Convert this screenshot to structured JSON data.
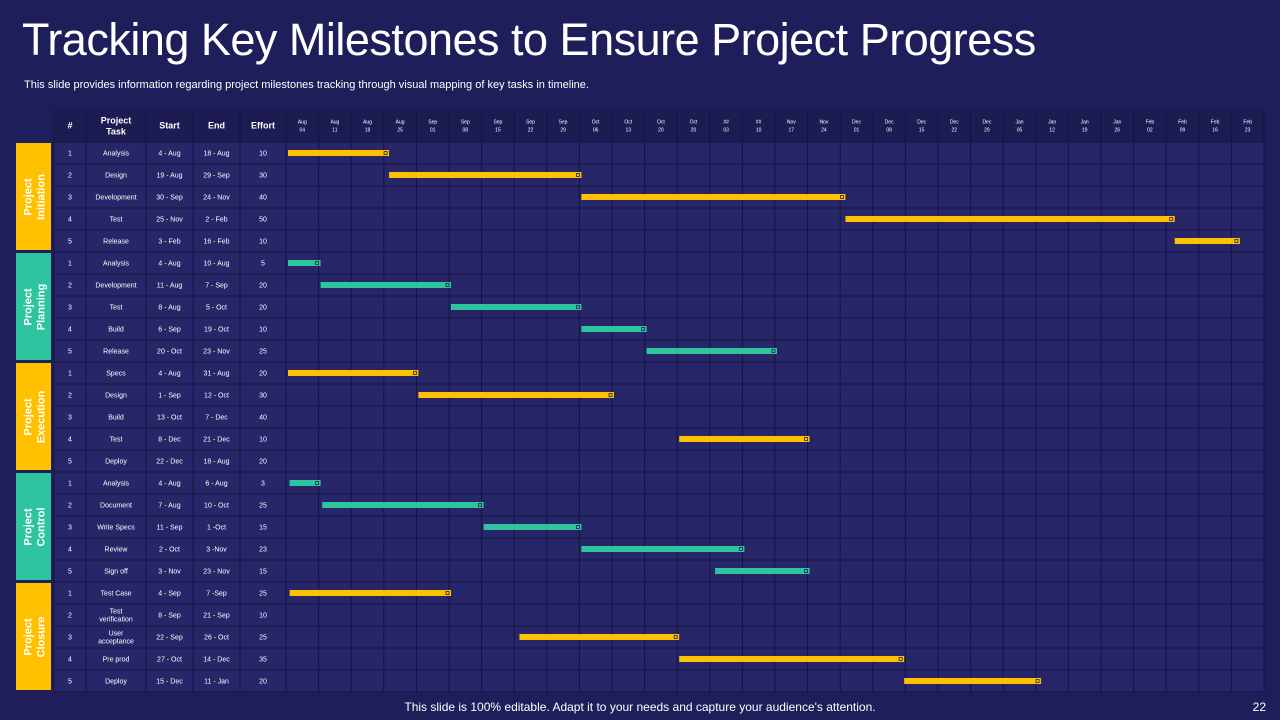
{
  "header": {
    "title": "Tracking Key Milestones to Ensure Project Progress",
    "subtitle": "This slide provides information regarding project milestones tracking through visual mapping of key tasks in timeline."
  },
  "footer": {
    "note": "This slide is 100% editable. Adapt it to your needs and capture your audience's attention.",
    "page_number": "22"
  },
  "colors": {
    "background": "#1e1e5a",
    "panel": "#262668",
    "header_row": "#1c1c52",
    "yellow": "#ffc000",
    "green": "#2ec4a0"
  },
  "chart_data": {
    "type": "table",
    "columns": [
      "#",
      "Project Task",
      "Start",
      "End",
      "Effort"
    ],
    "timeline": [
      [
        "Aug",
        "04"
      ],
      [
        "Aug",
        "11"
      ],
      [
        "Aug",
        "18"
      ],
      [
        "Aug",
        "25"
      ],
      [
        "Sep",
        "01"
      ],
      [
        "Sep",
        "08"
      ],
      [
        "Sep",
        "15"
      ],
      [
        "Sep",
        "22"
      ],
      [
        "Sep",
        "29"
      ],
      [
        "Oct",
        "06"
      ],
      [
        "Oct",
        "13"
      ],
      [
        "Oct",
        "20"
      ],
      [
        "Oct",
        "20"
      ],
      [
        "##",
        "03"
      ],
      [
        "##",
        "10"
      ],
      [
        "Nov",
        "17"
      ],
      [
        "Nov",
        "24"
      ],
      [
        "Dec",
        "01"
      ],
      [
        "Dec",
        "08"
      ],
      [
        "Dec",
        "15"
      ],
      [
        "Dec",
        "22"
      ],
      [
        "Dec",
        "29"
      ],
      [
        "Jan",
        "05"
      ],
      [
        "Jan",
        "12"
      ],
      [
        "Jan",
        "19"
      ],
      [
        "Jan",
        "26"
      ],
      [
        "Feb",
        "02"
      ],
      [
        "Feb",
        "09"
      ],
      [
        "Feb",
        "16"
      ],
      [
        "Feb",
        "23"
      ]
    ],
    "groups": [
      {
        "name": "Project Initiation",
        "color": "yellow",
        "tasks": [
          {
            "num": "1",
            "task": "Analysis",
            "start": "4 - Aug",
            "end": "18 - Aug",
            "effort": "10",
            "bar": [
              0,
              3.1
            ]
          },
          {
            "num": "2",
            "task": "Design",
            "start": "19 - Aug",
            "end": "29 - Sep",
            "effort": "30",
            "bar": [
              3.1,
              9.0
            ]
          },
          {
            "num": "3",
            "task": "Development",
            "start": "30 - Sep",
            "end": "24 - Nov",
            "effort": "40",
            "bar": [
              9.0,
              17.1
            ]
          },
          {
            "num": "4",
            "task": "Test",
            "start": "25 - Nov",
            "end": "2 - Feb",
            "effort": "50",
            "bar": [
              17.1,
              27.2
            ]
          },
          {
            "num": "5",
            "task": "Release",
            "start": "3 - Feb",
            "end": "16 - Feb",
            "effort": "10",
            "bar": [
              27.2,
              29.2
            ]
          }
        ]
      },
      {
        "name": "Project Planning",
        "color": "green",
        "tasks": [
          {
            "num": "1",
            "task": "Analysis",
            "start": "4 - Aug",
            "end": "10 - Aug",
            "effort": "5",
            "bar": [
              0,
              1.0
            ]
          },
          {
            "num": "2",
            "task": "Development",
            "start": "11 - Aug",
            "end": "7 - Sep",
            "effort": "20",
            "bar": [
              1.0,
              5.0
            ]
          },
          {
            "num": "3",
            "task": "Test",
            "start": "8 - Aug",
            "end": "5 - Oct",
            "effort": "20",
            "bar": [
              5.0,
              9.0
            ]
          },
          {
            "num": "4",
            "task": "Build",
            "start": "6 - Sep",
            "end": "19 - Oct",
            "effort": "10",
            "bar": [
              9.0,
              11.0
            ]
          },
          {
            "num": "5",
            "task": "Release",
            "start": "20 - Oct",
            "end": "23 - Nov",
            "effort": "25",
            "bar": [
              11.0,
              15.0
            ]
          }
        ]
      },
      {
        "name": "Project Execution",
        "color": "yellow",
        "tasks": [
          {
            "num": "1",
            "task": "Specs",
            "start": "4 - Aug",
            "end": "31 - Aug",
            "effort": "20",
            "bar": [
              0,
              4.0
            ]
          },
          {
            "num": "2",
            "task": "Design",
            "start": "1 - Sep",
            "end": "12 - Oct",
            "effort": "30",
            "bar": [
              4.0,
              10.0
            ]
          },
          {
            "num": "3",
            "task": "Build",
            "start": "13 - Oct",
            "end": "7 - Dec",
            "effort": "40",
            "bar": null
          },
          {
            "num": "4",
            "task": "Test",
            "start": "8 - Dec",
            "end": "21 - Dec",
            "effort": "10",
            "bar": [
              12.0,
              16.0
            ]
          },
          {
            "num": "5",
            "task": "Deploy",
            "start": "22 - Dec",
            "end": "18 - Aug",
            "effort": "20",
            "bar": null
          }
        ]
      },
      {
        "name": "Project Control",
        "color": "green",
        "tasks": [
          {
            "num": "1",
            "task": "Analysis",
            "start": "4 - Aug",
            "end": "6 - Aug",
            "effort": "3",
            "bar": [
              0.05,
              1.0
            ]
          },
          {
            "num": "2",
            "task": "Document",
            "start": "7 - Aug",
            "end": "10 - Oct",
            "effort": "25",
            "bar": [
              1.05,
              6.0
            ]
          },
          {
            "num": "3",
            "task": "Write Specs",
            "start": "11 - Sep",
            "end": "1 -Oct",
            "effort": "15",
            "bar": [
              6.0,
              9.0
            ]
          },
          {
            "num": "4",
            "task": "Review",
            "start": "2 - Oct",
            "end": "3 -Nov",
            "effort": "23",
            "bar": [
              9.0,
              14.0
            ]
          },
          {
            "num": "5",
            "task": "Sign off",
            "start": "3 - Nov",
            "end": "23 - Nov",
            "effort": "15",
            "bar": [
              13.1,
              16.0
            ]
          }
        ]
      },
      {
        "name": "Project Closure",
        "color": "yellow",
        "tasks": [
          {
            "num": "1",
            "task": "Test Case",
            "start": "4 - Sep",
            "end": "7 -Sep",
            "effort": "25",
            "bar": [
              0.05,
              5.0
            ]
          },
          {
            "num": "2",
            "task": "Test verification",
            "start": "8 - Sep",
            "end": "21 - Sep",
            "effort": "10",
            "bar": null
          },
          {
            "num": "3",
            "task": "User acceptance",
            "start": "22 - Sep",
            "end": "26 - Oct",
            "effort": "25",
            "bar": [
              7.1,
              12.0
            ]
          },
          {
            "num": "4",
            "task": "Pre prod",
            "start": "27 - Oct",
            "end": "14 - Dec",
            "effort": "35",
            "bar": [
              12.0,
              18.9
            ]
          },
          {
            "num": "5",
            "task": "Deploy",
            "start": "15 - Dec",
            "end": "11 - Jan",
            "effort": "20",
            "bar": [
              18.9,
              23.1
            ]
          }
        ]
      }
    ]
  }
}
